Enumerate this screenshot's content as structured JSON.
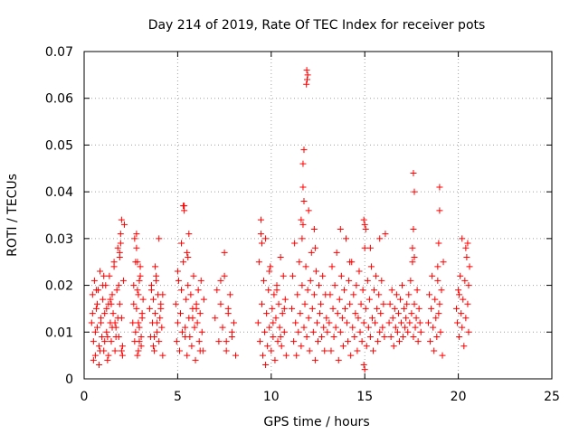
{
  "chart_data": {
    "type": "scatter",
    "title": "Day 214 of 2019, Rate Of TEC Index for receiver pots",
    "xlabel": "GPS time / hours",
    "ylabel": "ROTI / TECUs",
    "xlim": [
      0,
      25
    ],
    "ylim": [
      0,
      0.07
    ],
    "xticks": [
      0,
      5,
      10,
      15,
      20,
      25
    ],
    "xtick_labels": [
      "0",
      "5",
      "10",
      "15",
      "20",
      "25"
    ],
    "yticks": [
      0,
      0.01,
      0.02,
      0.03,
      0.04,
      0.05,
      0.06,
      0.07
    ],
    "ytick_labels": [
      "0",
      "0.01",
      "0.02",
      "0.03",
      "0.04",
      "0.05",
      "0.06",
      "0.07"
    ],
    "grid": true,
    "marker": "+",
    "color": "#ff0000",
    "series": [
      {
        "name": "ROTI",
        "x": [
          0.4,
          0.45,
          0.5,
          0.55,
          0.6,
          0.65,
          0.7,
          0.75,
          0.8,
          0.85,
          0.9,
          0.95,
          1.0,
          1.05,
          1.1,
          1.15,
          1.2,
          1.25,
          1.3,
          1.35,
          1.4,
          1.45,
          1.5,
          1.55,
          1.6,
          1.65,
          1.7,
          1.75,
          1.8,
          1.85,
          1.9,
          1.95,
          2.0,
          2.05,
          2.1,
          2.15,
          0.5,
          0.6,
          0.7,
          0.8,
          0.9,
          1.0,
          1.1,
          1.2,
          1.3,
          1.4,
          1.5,
          1.6,
          1.7,
          1.8,
          1.9,
          2.0,
          0.45,
          0.65,
          0.85,
          1.05,
          1.25,
          1.45,
          1.65,
          1.85,
          2.05,
          1.9,
          1.95,
          2.0,
          2.6,
          2.65,
          2.7,
          2.75,
          2.8,
          2.85,
          2.9,
          2.95,
          3.0,
          3.05,
          3.1,
          3.15,
          2.7,
          2.8,
          2.9,
          3.0,
          3.1,
          2.65,
          2.75,
          2.85,
          2.95,
          3.05,
          2.8,
          2.85,
          2.9,
          2.95,
          3.5,
          3.55,
          3.6,
          3.65,
          3.7,
          3.75,
          3.8,
          3.85,
          3.9,
          3.95,
          4.0,
          4.05,
          4.1,
          4.15,
          4.2,
          3.6,
          3.7,
          3.8,
          3.9,
          4.0,
          4.1,
          3.75,
          3.85,
          4.2,
          4.9,
          4.95,
          5.0,
          5.05,
          5.1,
          5.15,
          5.2,
          5.25,
          5.3,
          5.35,
          5.4,
          5.45,
          5.5,
          5.55,
          5.6,
          5.65,
          5.7,
          5.75,
          5.8,
          5.85,
          5.9,
          5.95,
          6.0,
          6.05,
          6.1,
          6.15,
          6.2,
          6.25,
          6.3,
          6.35,
          6.4,
          5.0,
          5.2,
          5.4,
          5.6,
          5.8,
          6.0,
          6.2,
          5.3,
          5.35,
          5.5,
          5.55,
          7.0,
          7.1,
          7.2,
          7.3,
          7.4,
          7.5,
          7.6,
          7.7,
          7.8,
          7.9,
          8.0,
          8.1,
          7.3,
          7.5,
          7.7,
          7.9,
          7.6,
          9.3,
          9.35,
          9.4,
          9.45,
          9.5,
          9.55,
          9.6,
          9.65,
          9.7,
          9.75,
          9.8,
          9.85,
          9.9,
          9.95,
          10.0,
          10.05,
          10.1,
          10.15,
          10.2,
          10.25,
          10.3,
          10.35,
          10.4,
          10.45,
          10.5,
          10.55,
          10.6,
          10.65,
          10.7,
          10.75,
          10.8,
          9.5,
          9.7,
          9.9,
          10.1,
          10.3,
          10.5,
          10.7,
          9.45,
          11.1,
          11.15,
          11.2,
          11.25,
          11.3,
          11.35,
          11.4,
          11.45,
          11.5,
          11.55,
          11.6,
          11.65,
          11.7,
          11.75,
          11.8,
          11.85,
          11.9,
          11.95,
          12.0,
          12.05,
          12.1,
          12.15,
          12.2,
          12.25,
          12.3,
          12.35,
          12.4,
          12.45,
          12.5,
          12.55,
          12.6,
          12.65,
          12.7,
          12.75,
          12.8,
          12.85,
          12.9,
          12.95,
          13.0,
          11.7,
          11.75,
          11.7,
          11.75,
          11.6,
          11.65,
          11.9,
          11.95,
          11.92,
          11.88,
          12.0,
          12.3,
          12.35,
          13.1,
          13.15,
          13.2,
          13.25,
          13.3,
          13.35,
          13.4,
          13.45,
          13.5,
          13.55,
          13.6,
          13.65,
          13.7,
          13.75,
          13.8,
          13.85,
          13.9,
          13.95,
          14.0,
          14.05,
          14.1,
          14.15,
          14.2,
          14.25,
          14.3,
          14.35,
          14.4,
          14.45,
          14.5,
          14.55,
          14.6,
          14.65,
          14.7,
          14.75,
          14.8,
          14.85,
          14.9,
          14.95,
          15.0,
          15.05,
          15.1,
          15.15,
          15.2,
          15.25,
          15.3,
          15.35,
          15.4,
          15.45,
          15.5,
          15.55,
          15.6,
          15.65,
          15.7,
          15.75,
          15.8,
          15.85,
          15.9,
          15.95,
          16.0,
          16.05,
          16.1,
          14.95,
          15.0,
          15.05,
          14.95,
          15.0,
          13.7,
          14.2,
          15.3,
          15.8,
          16.3,
          16.35,
          16.4,
          16.45,
          16.5,
          16.55,
          16.6,
          16.65,
          16.7,
          16.75,
          16.8,
          16.85,
          16.9,
          16.95,
          17.0,
          17.05,
          17.1,
          17.15,
          17.2,
          17.25,
          17.3,
          17.35,
          17.4,
          17.45,
          17.5,
          17.55,
          17.6,
          17.65,
          17.7,
          17.75,
          17.8,
          17.85,
          17.9,
          17.95,
          18.0,
          17.6,
          17.65,
          17.6,
          17.55,
          17.65,
          18.4,
          18.45,
          18.5,
          18.55,
          18.6,
          18.65,
          18.7,
          18.75,
          18.8,
          18.85,
          18.9,
          18.95,
          19.0,
          19.05,
          19.1,
          19.15,
          19.2,
          18.95,
          19.0,
          19.0,
          18.9,
          19.9,
          19.95,
          20.0,
          20.05,
          20.1,
          20.15,
          20.2,
          20.25,
          20.3,
          20.35,
          20.4,
          20.45,
          20.5,
          20.55,
          20.6,
          20.05,
          20.2,
          20.4,
          20.5,
          20.55
        ],
        "y": [
          0.012,
          0.018,
          0.008,
          0.021,
          0.005,
          0.015,
          0.011,
          0.019,
          0.007,
          0.023,
          0.013,
          0.009,
          0.017,
          0.006,
          0.014,
          0.02,
          0.01,
          0.004,
          0.016,
          0.022,
          0.012,
          0.008,
          0.018,
          0.014,
          0.025,
          0.006,
          0.011,
          0.019,
          0.028,
          0.009,
          0.016,
          0.031,
          0.013,
          0.007,
          0.021,
          0.033,
          0.004,
          0.01,
          0.016,
          0.003,
          0.012,
          0.02,
          0.008,
          0.015,
          0.005,
          0.017,
          0.011,
          0.024,
          0.009,
          0.013,
          0.027,
          0.006,
          0.014,
          0.019,
          0.006,
          0.022,
          0.009,
          0.016,
          0.012,
          0.02,
          0.005,
          0.026,
          0.029,
          0.034,
          0.012,
          0.02,
          0.008,
          0.025,
          0.015,
          0.005,
          0.018,
          0.011,
          0.022,
          0.009,
          0.014,
          0.017,
          0.03,
          0.028,
          0.006,
          0.024,
          0.013,
          0.016,
          0.01,
          0.019,
          0.021,
          0.007,
          0.031,
          0.025,
          0.012,
          0.008,
          0.015,
          0.009,
          0.02,
          0.012,
          0.017,
          0.006,
          0.014,
          0.022,
          0.01,
          0.018,
          0.008,
          0.013,
          0.016,
          0.011,
          0.005,
          0.019,
          0.007,
          0.024,
          0.012,
          0.03,
          0.015,
          0.009,
          0.021,
          0.018,
          0.016,
          0.008,
          0.012,
          0.021,
          0.006,
          0.014,
          0.019,
          0.01,
          0.025,
          0.037,
          0.011,
          0.017,
          0.005,
          0.02,
          0.013,
          0.009,
          0.018,
          0.007,
          0.015,
          0.022,
          0.011,
          0.004,
          0.016,
          0.012,
          0.019,
          0.008,
          0.014,
          0.021,
          0.01,
          0.006,
          0.017,
          0.023,
          0.029,
          0.009,
          0.031,
          0.013,
          0.015,
          0.006,
          0.037,
          0.036,
          0.027,
          0.026,
          0.013,
          0.019,
          0.008,
          0.016,
          0.011,
          0.022,
          0.006,
          0.014,
          0.018,
          0.009,
          0.012,
          0.005,
          0.021,
          0.027,
          0.015,
          0.01,
          0.008,
          0.012,
          0.025,
          0.008,
          0.034,
          0.016,
          0.005,
          0.021,
          0.01,
          0.03,
          0.014,
          0.007,
          0.019,
          0.011,
          0.024,
          0.006,
          0.015,
          0.009,
          0.018,
          0.004,
          0.013,
          0.02,
          0.008,
          0.016,
          0.011,
          0.026,
          0.007,
          0.014,
          0.022,
          0.01,
          0.017,
          0.005,
          0.029,
          0.003,
          0.023,
          0.012,
          0.019,
          0.009,
          0.015,
          0.031,
          0.015,
          0.022,
          0.008,
          0.029,
          0.012,
          0.005,
          0.018,
          0.01,
          0.025,
          0.014,
          0.007,
          0.02,
          0.033,
          0.011,
          0.016,
          0.024,
          0.009,
          0.019,
          0.013,
          0.006,
          0.021,
          0.027,
          0.015,
          0.01,
          0.018,
          0.004,
          0.023,
          0.012,
          0.008,
          0.02,
          0.014,
          0.016,
          0.009,
          0.022,
          0.011,
          0.006,
          0.018,
          0.013,
          0.01,
          0.046,
          0.049,
          0.041,
          0.038,
          0.034,
          0.03,
          0.066,
          0.065,
          0.064,
          0.063,
          0.036,
          0.032,
          0.028,
          0.012,
          0.018,
          0.006,
          0.024,
          0.015,
          0.009,
          0.02,
          0.011,
          0.027,
          0.014,
          0.004,
          0.017,
          0.01,
          0.022,
          0.013,
          0.007,
          0.019,
          0.015,
          0.03,
          0.012,
          0.008,
          0.021,
          0.016,
          0.005,
          0.025,
          0.011,
          0.018,
          0.009,
          0.014,
          0.02,
          0.006,
          0.013,
          0.023,
          0.01,
          0.016,
          0.008,
          0.019,
          0.012,
          0.028,
          0.015,
          0.007,
          0.021,
          0.011,
          0.017,
          0.009,
          0.024,
          0.013,
          0.006,
          0.019,
          0.012,
          0.022,
          0.015,
          0.008,
          0.018,
          0.01,
          0.014,
          0.021,
          0.011,
          0.016,
          0.009,
          0.031,
          0.034,
          0.033,
          0.032,
          0.003,
          0.002,
          0.032,
          0.025,
          0.028,
          0.03,
          0.012,
          0.016,
          0.009,
          0.019,
          0.013,
          0.007,
          0.015,
          0.011,
          0.018,
          0.01,
          0.014,
          0.008,
          0.017,
          0.012,
          0.02,
          0.009,
          0.015,
          0.011,
          0.013,
          0.016,
          0.01,
          0.018,
          0.012,
          0.021,
          0.014,
          0.025,
          0.009,
          0.016,
          0.011,
          0.013,
          0.019,
          0.008,
          0.015,
          0.012,
          0.01,
          0.044,
          0.04,
          0.032,
          0.028,
          0.026,
          0.012,
          0.018,
          0.008,
          0.015,
          0.022,
          0.011,
          0.006,
          0.017,
          0.013,
          0.009,
          0.021,
          0.014,
          0.016,
          0.01,
          0.019,
          0.005,
          0.025,
          0.029,
          0.041,
          0.036,
          0.024,
          0.015,
          0.012,
          0.019,
          0.009,
          0.022,
          0.014,
          0.011,
          0.017,
          0.007,
          0.021,
          0.013,
          0.026,
          0.016,
          0.01,
          0.024,
          0.018,
          0.03,
          0.028,
          0.029,
          0.02
        ]
      }
    ]
  }
}
